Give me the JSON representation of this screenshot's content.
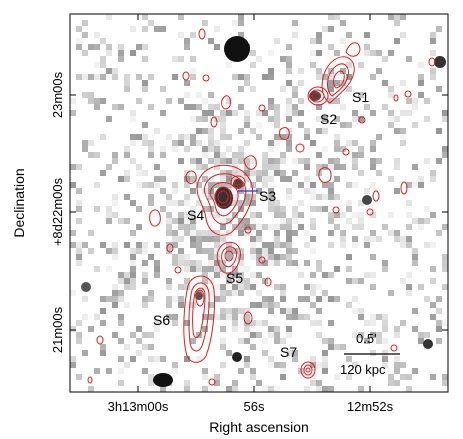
{
  "axes": {
    "xlabel": "Right ascension",
    "ylabel": "Declination",
    "x_ticks": [
      "3h13m00s",
      "56s",
      "12m52s"
    ],
    "y_ticks": [
      "21m00s",
      "+8d22m00s",
      "23m00s"
    ]
  },
  "sources": [
    {
      "id": "s1",
      "label": "S1"
    },
    {
      "id": "s2",
      "label": "S2"
    },
    {
      "id": "s3",
      "label": "S3"
    },
    {
      "id": "s4",
      "label": "S4"
    },
    {
      "id": "s5",
      "label": "S5"
    },
    {
      "id": "s6",
      "label": "S6"
    },
    {
      "id": "s7",
      "label": "S7"
    }
  ],
  "scale_bar": {
    "angular_label": "0.5'",
    "physical_label": "120 kpc"
  },
  "colors": {
    "contour": "#e01e1e",
    "marker_arrow": "#2a3fd6",
    "background_image": "grayscale"
  }
}
